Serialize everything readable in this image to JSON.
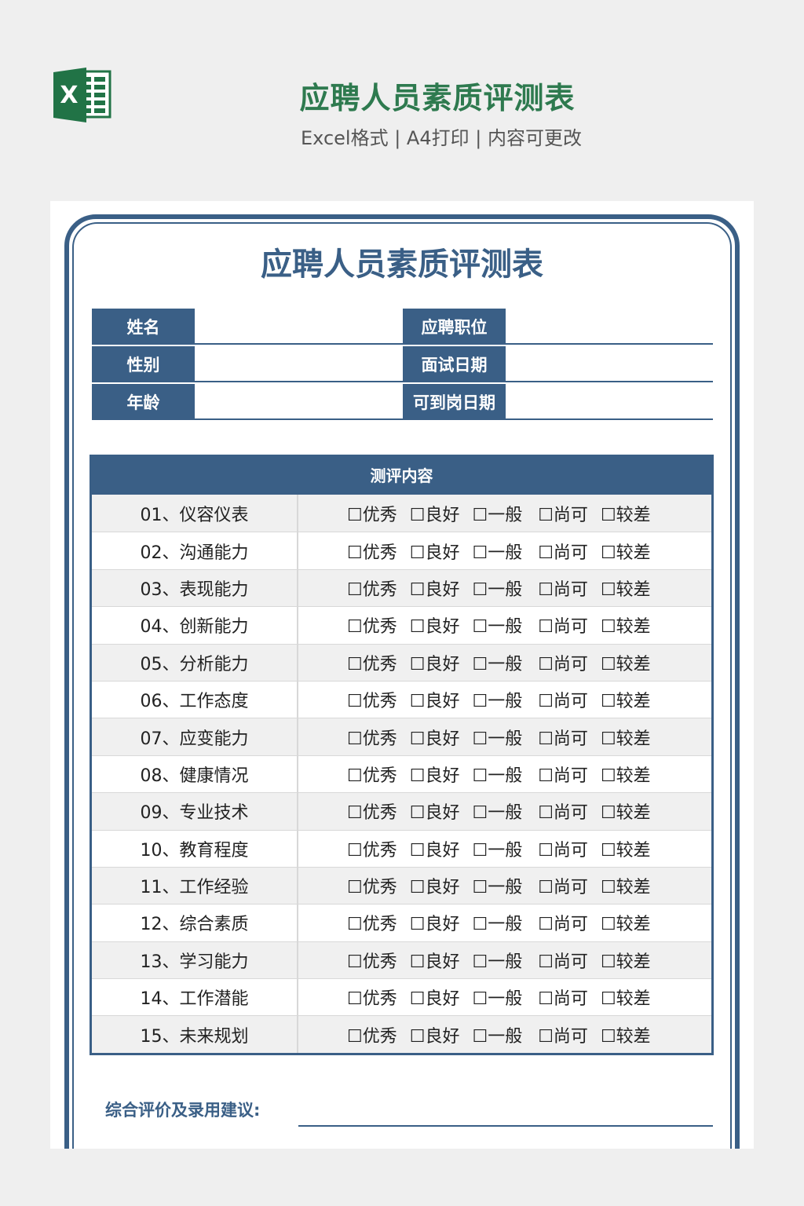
{
  "header": {
    "title": "应聘人员素质评测表",
    "subtitle": "Excel格式 | A4打印 | 内容可更改",
    "logo_letter": "X"
  },
  "document": {
    "title": "应聘人员素质评测表",
    "info_fields": [
      {
        "left": "姓名",
        "right": "应聘职位"
      },
      {
        "left": "性别",
        "right": "面试日期"
      },
      {
        "left": "年龄",
        "right": "可到岗日期"
      }
    ],
    "evaluation": {
      "header": "测评内容",
      "options": [
        "☐优秀",
        "☐良好",
        "☐一般",
        "☐尚可",
        "☐较差"
      ],
      "items": [
        "01、仪容仪表",
        "02、沟通能力",
        "03、表现能力",
        "04、创新能力",
        "05、分析能力",
        "06、工作态度",
        "07、应变能力",
        "08、健康情况",
        "09、专业技术",
        "10、教育程度",
        "11、工作经验",
        "12、综合素质",
        "13、学习能力",
        "14、工作潜能",
        "15、未来规划"
      ]
    },
    "comment_label": "综合评价及录用建议:"
  },
  "colors": {
    "accent": "#3a5f86",
    "excel_green": "#217346",
    "title_green": "#2e7a4f"
  }
}
